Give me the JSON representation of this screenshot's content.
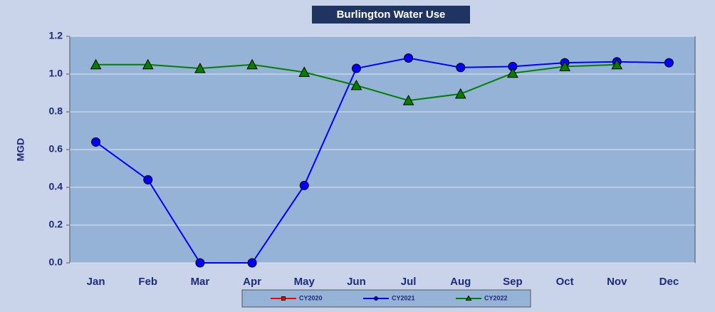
{
  "chart_data": {
    "type": "line",
    "title": "Burlington Water Use",
    "y_label": "MGD",
    "categories": [
      "Jan",
      "Feb",
      "Mar",
      "Apr",
      "May",
      "Jun",
      "Jul",
      "Aug",
      "Sep",
      "Oct",
      "Nov",
      "Dec"
    ],
    "series": [
      {
        "name": "CY2020",
        "color": "#ff0000",
        "marker": "square",
        "values": [
          null,
          null,
          null,
          null,
          null,
          null,
          null,
          null,
          null,
          null,
          null,
          null
        ]
      },
      {
        "name": "CY2021",
        "color": "#0000ff",
        "marker": "circle",
        "values": [
          0.64,
          0.44,
          0,
          0,
          0.41,
          1.03,
          1.085,
          1.035,
          1.04,
          1.06,
          1.065,
          1.06
        ]
      },
      {
        "name": "CY2022",
        "color": "#008000",
        "marker": "triangle",
        "values": [
          1.05,
          1.05,
          1.03,
          1.05,
          1.01,
          0.94,
          0.86,
          0.895,
          1.005,
          1.04,
          1.05,
          null
        ]
      }
    ],
    "ylim": [
      0,
      1.2
    ],
    "yticks": [
      {
        "value": 0,
        "label": "0.0"
      },
      0.2,
      0.4,
      0.6,
      0.8,
      {
        "value": 1,
        "label": "1.0"
      },
      1.2
    ],
    "grid": true,
    "legend": "bottom"
  }
}
